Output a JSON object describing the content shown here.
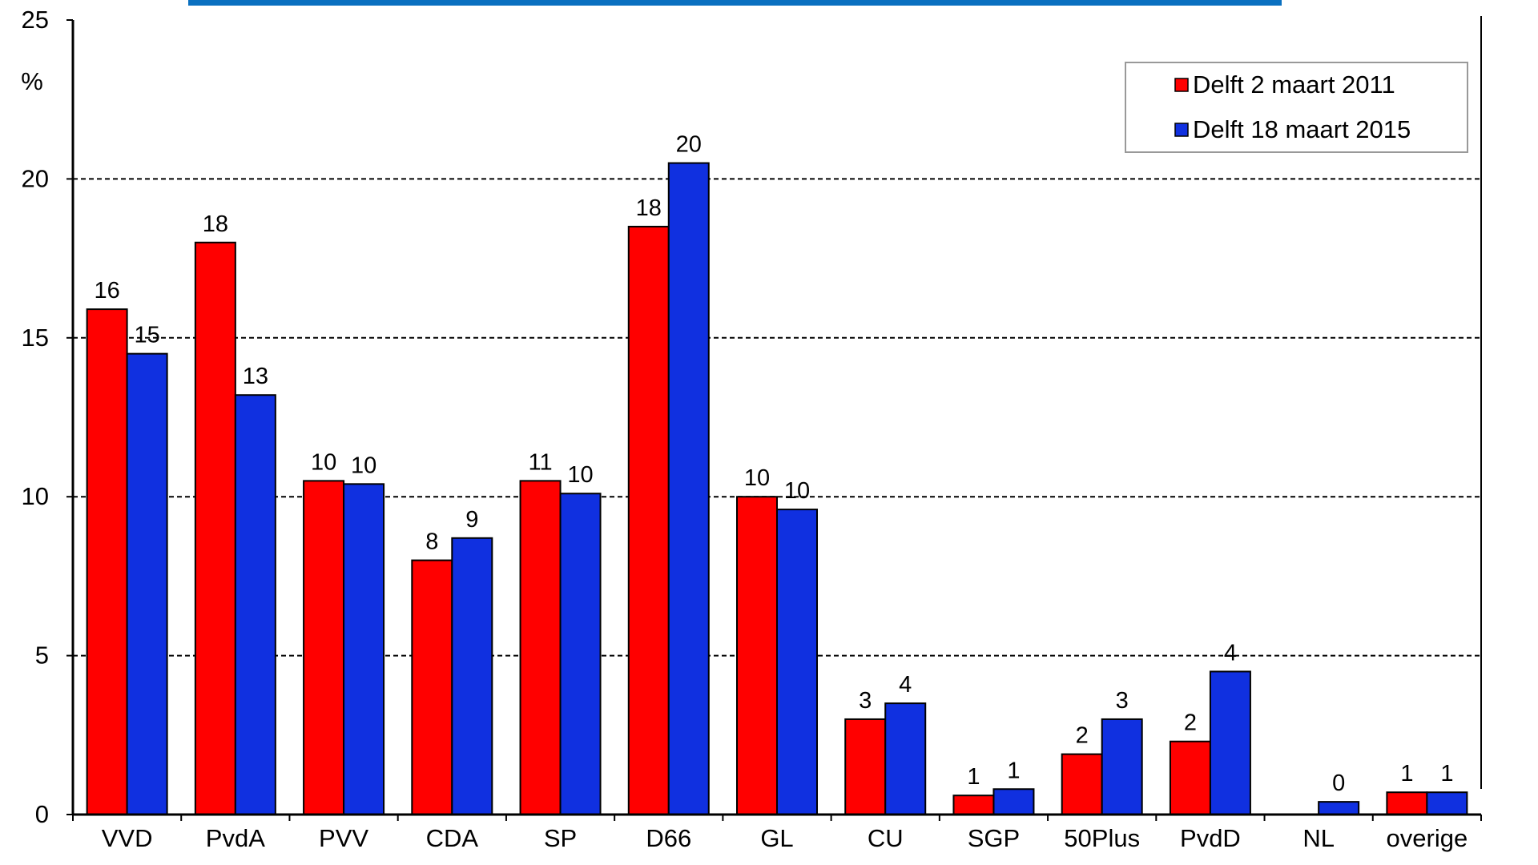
{
  "chart_data": {
    "type": "bar",
    "title": "",
    "xlabel": "",
    "ylabel": "%",
    "ylim": [
      0,
      25
    ],
    "yticks": [
      0,
      5,
      10,
      15,
      20,
      25
    ],
    "grid": "horizontal dashed",
    "legend_position": "top-right",
    "categories": [
      "VVD",
      "PvdA",
      "PVV",
      "CDA",
      "SP",
      "D66",
      "GL",
      "CU",
      "SGP",
      "50Plus",
      "PvdD",
      "NL",
      "overige"
    ],
    "series": [
      {
        "name": "Delft 2 maart 2011",
        "color": "#ff0000",
        "values": [
          15.9,
          18.0,
          10.5,
          8.0,
          10.5,
          18.5,
          10.0,
          3.0,
          0.6,
          1.9,
          2.3,
          null,
          0.7
        ],
        "labels": [
          "16",
          "18",
          "10",
          "8",
          "11",
          "18",
          "10",
          "3",
          "1",
          "2",
          "2",
          "",
          "1"
        ]
      },
      {
        "name": "Delft 18 maart 2015",
        "color": "#1030e0",
        "values": [
          14.5,
          13.2,
          10.4,
          8.7,
          10.1,
          20.5,
          9.6,
          3.5,
          0.8,
          3.0,
          4.5,
          0.4,
          0.7
        ],
        "labels": [
          "15",
          "13",
          "10",
          "9",
          "10",
          "20",
          "10",
          "4",
          "1",
          "3",
          "4",
          "0",
          "1"
        ]
      }
    ]
  }
}
